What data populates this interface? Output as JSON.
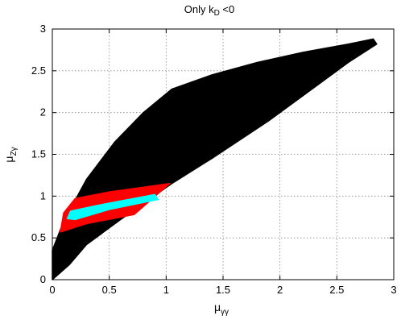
{
  "chart_data": {
    "type": "scatter",
    "title": {
      "main": "Only k",
      "sub": "D",
      "tail": " <0"
    },
    "xlabel": {
      "main": "μ",
      "sub": "γγ"
    },
    "ylabel": {
      "main": "μ",
      "sub": "Zγ"
    },
    "xlim": [
      0,
      3
    ],
    "ylim": [
      0,
      3
    ],
    "xticks": [
      0,
      0.5,
      1,
      1.5,
      2,
      2.5,
      3
    ],
    "yticks": [
      0,
      0.5,
      1,
      1.5,
      2,
      2.5,
      3
    ],
    "xtick_labels": [
      "0",
      "0.5",
      "1",
      "1.5",
      "2",
      "2.5",
      "3"
    ],
    "ytick_labels": [
      "0",
      "0.5",
      "1",
      "1.5",
      "2",
      "2.5",
      "3"
    ],
    "grid": true,
    "regions": [
      {
        "name": "black",
        "color": "#000000",
        "points": [
          [
            0,
            0
          ],
          [
            0,
            0.35
          ],
          [
            0.1,
            0.7
          ],
          [
            0.3,
            1.2
          ],
          [
            0.55,
            1.65
          ],
          [
            0.8,
            2.0
          ],
          [
            1.05,
            2.28
          ],
          [
            1.4,
            2.45
          ],
          [
            1.8,
            2.6
          ],
          [
            2.2,
            2.72
          ],
          [
            2.6,
            2.82
          ],
          [
            2.82,
            2.88
          ],
          [
            2.85,
            2.82
          ],
          [
            2.6,
            2.6
          ],
          [
            2.3,
            2.3
          ],
          [
            1.9,
            1.9
          ],
          [
            1.4,
            1.45
          ],
          [
            1.05,
            1.15
          ],
          [
            0.6,
            0.72
          ],
          [
            0.3,
            0.42
          ],
          [
            0.15,
            0.18
          ]
        ]
      },
      {
        "name": "red",
        "color": "#ff0000",
        "points": [
          [
            0.07,
            0.57
          ],
          [
            0.1,
            0.8
          ],
          [
            0.2,
            0.97
          ],
          [
            0.5,
            1.05
          ],
          [
            1.03,
            1.15
          ],
          [
            0.72,
            0.78
          ],
          [
            0.3,
            0.67
          ]
        ]
      },
      {
        "name": "cyan",
        "color": "#00ffff",
        "points": [
          [
            0.13,
            0.73
          ],
          [
            0.16,
            0.82
          ],
          [
            0.4,
            0.89
          ],
          [
            0.9,
            1.02
          ],
          [
            0.93,
            0.96
          ],
          [
            0.5,
            0.84
          ],
          [
            0.2,
            0.72
          ]
        ]
      }
    ]
  }
}
